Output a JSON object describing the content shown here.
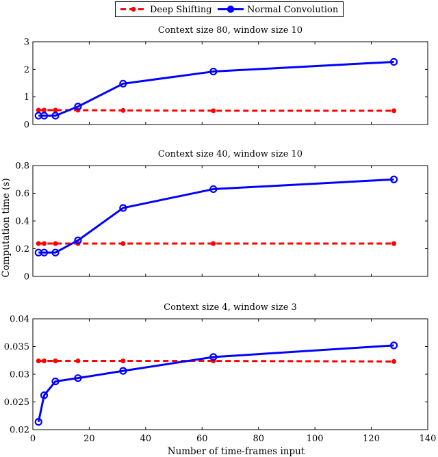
{
  "legend": {
    "entries": [
      {
        "name": "Deep Shifting",
        "color": "#ff0000",
        "style": "dashed",
        "marker": "dot"
      },
      {
        "name": "Normal Convolution",
        "color": "#0000ff",
        "style": "solid",
        "marker": "circle"
      }
    ],
    "placement": "top-center"
  },
  "axis_labels": {
    "xlabel": "Number of time-frames input",
    "ylabel": "Computation time (s)"
  },
  "chart_data": [
    {
      "type": "line",
      "title": "Context size 80, window size 10",
      "x": [
        2,
        4,
        8,
        16,
        32,
        64,
        128
      ],
      "xlim": [
        0,
        140
      ],
      "xticks": [
        0,
        20,
        40,
        60,
        80,
        100,
        120,
        140
      ],
      "show_xtick_labels": false,
      "ylim": [
        0,
        3
      ],
      "yticks": [
        0,
        1,
        2,
        3
      ],
      "ytick_labels": [
        "0",
        "1",
        "2",
        "3"
      ],
      "grid": false,
      "series": [
        {
          "name": "Deep Shifting",
          "color": "#ff0000",
          "values": [
            0.52,
            0.52,
            0.52,
            0.52,
            0.51,
            0.5,
            0.5
          ]
        },
        {
          "name": "Normal Convolution",
          "color": "#0000ff",
          "values": [
            0.32,
            0.32,
            0.32,
            0.65,
            1.48,
            1.92,
            2.27
          ]
        }
      ]
    },
    {
      "type": "line",
      "title": "Context size 40, window size 10",
      "x": [
        2,
        4,
        8,
        16,
        32,
        64,
        128
      ],
      "xlim": [
        0,
        140
      ],
      "xticks": [
        0,
        20,
        40,
        60,
        80,
        100,
        120,
        140
      ],
      "show_xtick_labels": false,
      "ylim": [
        0,
        0.8
      ],
      "yticks": [
        0,
        0.2,
        0.4,
        0.6,
        0.8
      ],
      "ytick_labels": [
        "0",
        "0.2",
        "0.4",
        "0.6",
        "0.8"
      ],
      "grid": false,
      "series": [
        {
          "name": "Deep Shifting",
          "color": "#ff0000",
          "values": [
            0.237,
            0.237,
            0.237,
            0.237,
            0.237,
            0.237,
            0.237
          ]
        },
        {
          "name": "Normal Convolution",
          "color": "#0000ff",
          "values": [
            0.172,
            0.172,
            0.172,
            0.26,
            0.494,
            0.63,
            0.7
          ]
        }
      ]
    },
    {
      "type": "line",
      "title": "Context size 4, window size 3",
      "x": [
        2,
        4,
        8,
        16,
        32,
        64,
        128
      ],
      "xlim": [
        0,
        140
      ],
      "xticks": [
        0,
        20,
        40,
        60,
        80,
        100,
        120,
        140
      ],
      "xtick_labels": [
        "0",
        "20",
        "40",
        "60",
        "80",
        "100",
        "120",
        "140"
      ],
      "show_xtick_labels": true,
      "ylim": [
        0.02,
        0.04
      ],
      "yticks": [
        0.02,
        0.025,
        0.03,
        0.035,
        0.04
      ],
      "ytick_labels": [
        "0.02",
        "0.025",
        "0.03",
        "0.035",
        "0.04"
      ],
      "grid": false,
      "series": [
        {
          "name": "Deep Shifting",
          "color": "#ff0000",
          "values": [
            0.0324,
            0.0324,
            0.0324,
            0.0324,
            0.0324,
            0.0324,
            0.0323
          ]
        },
        {
          "name": "Normal Convolution",
          "color": "#0000ff",
          "values": [
            0.0214,
            0.0262,
            0.0287,
            0.0293,
            0.0306,
            0.0331,
            0.0352
          ]
        }
      ]
    }
  ]
}
